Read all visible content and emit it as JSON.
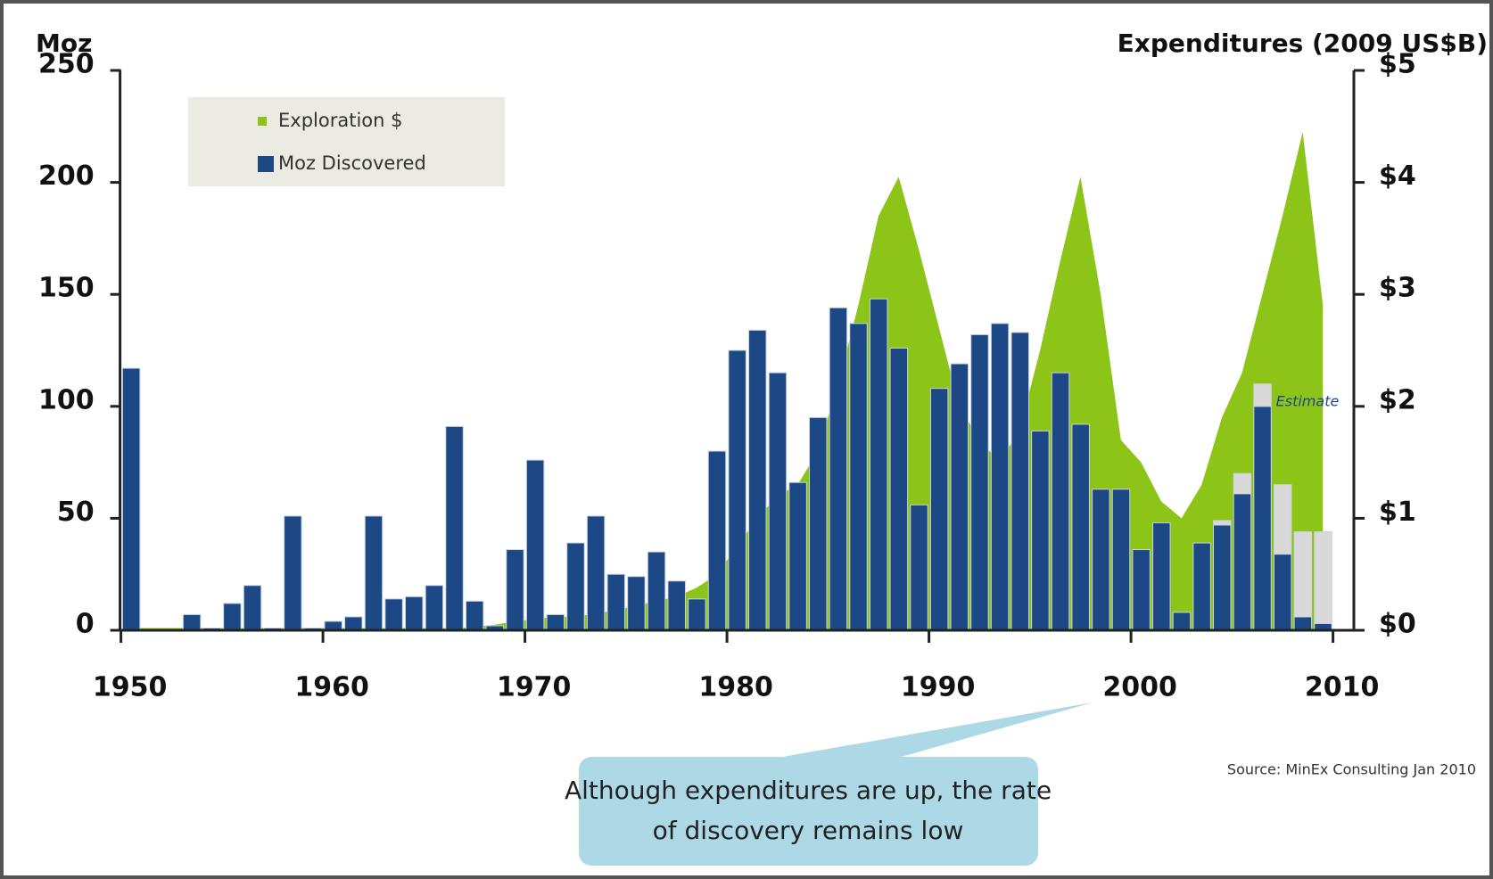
{
  "chart_data": {
    "type": "bar-area",
    "y_label": "Moz",
    "y2_label": "Expenditures (2009 US$B)",
    "annotation": "Although expenditures are up, the rate of discovery remains low",
    "source": "Source: MinEx Consulting Jan 2010",
    "x": [
      1950,
      1951,
      1952,
      1953,
      1954,
      1955,
      1956,
      1957,
      1958,
      1959,
      1960,
      1961,
      1962,
      1963,
      1964,
      1965,
      1966,
      1967,
      1968,
      1969,
      1970,
      1971,
      1972,
      1973,
      1974,
      1975,
      1976,
      1977,
      1978,
      1979,
      1980,
      1981,
      1982,
      1983,
      1984,
      1985,
      1986,
      1987,
      1988,
      1989,
      1990,
      1991,
      1992,
      1993,
      1994,
      1995,
      1996,
      1997,
      1998,
      1999,
      2000,
      2001,
      2002,
      2003,
      2004,
      2005,
      2006,
      2007,
      2008,
      2009
    ],
    "xlim": [
      1950,
      2010
    ],
    "xticks": [
      1950,
      1960,
      1970,
      1980,
      1990,
      2000,
      2010
    ],
    "ylim": [
      0,
      250
    ],
    "yticks": [
      0,
      50,
      100,
      150,
      200,
      250
    ],
    "y2lim": [
      0,
      5
    ],
    "y2ticks": [
      {
        "value": 0,
        "label": "$0"
      },
      {
        "value": 1,
        "label": "$1"
      },
      {
        "value": 2,
        "label": "$2"
      },
      {
        "value": 3,
        "label": "$3"
      },
      {
        "value": 4,
        "label": "$4"
      },
      {
        "value": 5,
        "label": "$5"
      }
    ],
    "legend": "upper left",
    "series": [
      {
        "name": "Exploration $",
        "color": "#8cc418",
        "axis": "y2",
        "kind": "area",
        "values": [
          0.02,
          0.02,
          0.02,
          0.02,
          0.02,
          0.02,
          0.02,
          0.02,
          0.02,
          0.02,
          0.02,
          0.02,
          0.02,
          0.02,
          0.02,
          0.02,
          0.02,
          0.03,
          0.05,
          0.08,
          0.1,
          0.12,
          0.12,
          0.15,
          0.18,
          0.22,
          0.26,
          0.3,
          0.38,
          0.5,
          0.75,
          1.0,
          1.2,
          1.3,
          1.6,
          2.2,
          2.9,
          3.7,
          4.05,
          3.4,
          2.7,
          2.0,
          1.7,
          1.5,
          1.8,
          2.5,
          3.3,
          4.05,
          3.0,
          1.7,
          1.5,
          1.15,
          1.0,
          1.3,
          1.9,
          2.3,
          3.0,
          3.7,
          4.45,
          2.9
        ]
      },
      {
        "name": "Moz Discovered",
        "color": "#1d4886",
        "kind": "bar",
        "values": [
          117,
          0,
          0,
          7,
          1,
          12,
          20,
          1,
          51,
          1,
          4,
          6,
          51,
          14,
          15,
          20,
          91,
          13,
          2,
          36,
          76,
          7,
          39,
          51,
          25,
          24,
          35,
          22,
          14,
          80,
          125,
          134,
          115,
          66,
          95,
          144,
          137,
          148,
          126,
          56,
          108,
          119,
          132,
          137,
          133,
          89,
          115,
          92,
          63,
          63,
          36,
          48,
          8,
          39,
          47,
          61,
          100,
          34,
          6,
          3
        ]
      },
      {
        "name": "Estimate",
        "color": "#d9d9d9",
        "kind": "stack",
        "values": [
          null,
          null,
          null,
          null,
          null,
          null,
          null,
          null,
          null,
          null,
          null,
          null,
          null,
          null,
          null,
          null,
          null,
          null,
          null,
          null,
          null,
          null,
          null,
          null,
          null,
          null,
          null,
          null,
          null,
          null,
          null,
          null,
          null,
          null,
          null,
          null,
          null,
          null,
          null,
          null,
          null,
          null,
          null,
          null,
          null,
          null,
          null,
          null,
          null,
          null,
          null,
          null,
          null,
          null,
          2,
          9,
          10,
          31,
          38,
          41
        ]
      }
    ]
  }
}
